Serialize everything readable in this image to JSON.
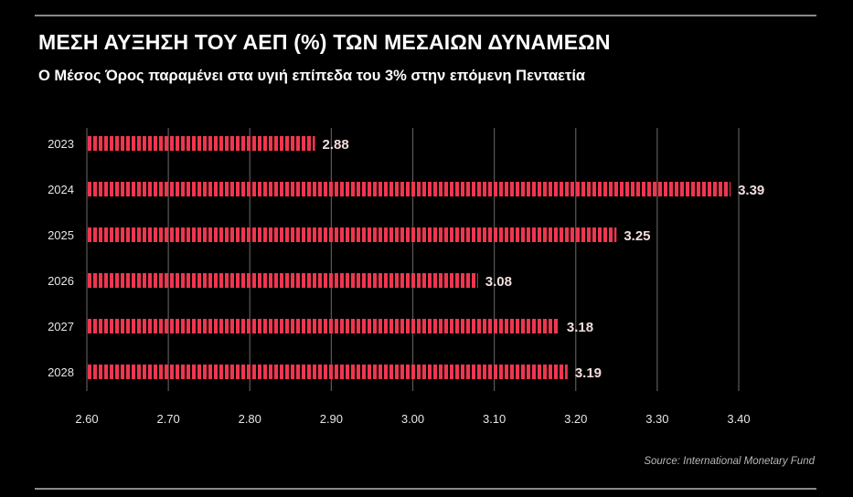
{
  "title": "ΜΕΣΗ ΑΥΞΗΣΗ ΤΟΥ ΑΕΠ (%) ΤΩΝ ΜΕΣΑΙΩΝ ΔΥΝΑΜΕΩΝ",
  "subtitle": "Ο Μέσος Όρος παραμένει στα υγιή επίπεδα του 3% στην επόμενη Πενταετία",
  "source": "Source: International Monetary Fund",
  "colors": {
    "background": "#000000",
    "bar": "#f0364f",
    "text": "#ffffff",
    "grid": "#5a5a5a"
  },
  "chart_data": {
    "type": "bar",
    "orientation": "horizontal",
    "categories": [
      "2023",
      "2024",
      "2025",
      "2026",
      "2027",
      "2028"
    ],
    "values": [
      2.88,
      3.39,
      3.25,
      3.08,
      3.18,
      3.19
    ],
    "value_labels": [
      "2.88",
      "3.39",
      "3.25",
      "3.08",
      "3.18",
      "3.19"
    ],
    "xlim": [
      2.6,
      3.4
    ],
    "xticks": [
      2.6,
      2.7,
      2.8,
      2.9,
      3.0,
      3.1,
      3.2,
      3.3,
      3.4
    ],
    "xtick_labels": [
      "2.60",
      "2.70",
      "2.80",
      "2.90",
      "3.00",
      "3.10",
      "3.20",
      "3.30",
      "3.40"
    ],
    "grid": "vertical",
    "xlabel": "",
    "ylabel": ""
  }
}
